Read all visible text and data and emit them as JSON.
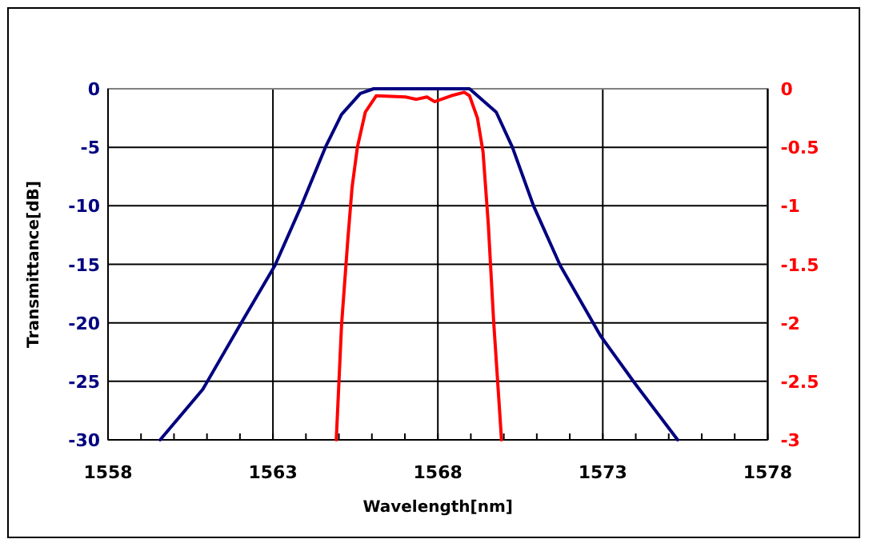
{
  "chart_data": {
    "type": "line",
    "xlabel": "Wavelength[nm]",
    "ylabel": "Transmittance[dB]",
    "xlim": [
      1558,
      1578
    ],
    "xticks": [
      1558,
      {
        "value": 1559,
        "label": null
      },
      {
        "value": 1560,
        "label": null
      },
      {
        "value": 1561,
        "label": null
      },
      {
        "value": 1562,
        "label": null
      },
      1563,
      {
        "value": 1564,
        "label": null
      },
      {
        "value": 1565,
        "label": null
      },
      {
        "value": 1566,
        "label": null
      },
      {
        "value": 1567,
        "label": null
      },
      1568,
      {
        "value": 1569,
        "label": null
      },
      {
        "value": 1570,
        "label": null
      },
      {
        "value": 1571,
        "label": null
      },
      {
        "value": 1572,
        "label": null
      },
      1573,
      {
        "value": 1574,
        "label": null
      },
      {
        "value": 1575,
        "label": null
      },
      {
        "value": 1576,
        "label": null
      },
      {
        "value": 1577,
        "label": null
      },
      1578
    ],
    "ylim": [
      -30,
      0
    ],
    "yticks": [
      -30,
      -25,
      -20,
      -15,
      -10,
      -5,
      0
    ],
    "y2lim": [
      -3,
      0
    ],
    "y2ticks": [
      -3,
      -2.5,
      -2,
      -1.5,
      -1,
      -0.5,
      0
    ],
    "grid": true,
    "marker": "none",
    "line_style": "solid",
    "series": [
      {
        "color": "#000080",
        "x": [
          1559.58,
          1560.87,
          1562.0,
          1563.06,
          1563.86,
          1564.59,
          1565.08,
          1565.65,
          1566.05,
          1568.96,
          1569.77,
          1570.26,
          1570.9,
          1571.71,
          1572.93,
          1573.98,
          1575.27
        ],
        "values": [
          -30,
          -25.7,
          -20.2,
          -15.1,
          -10,
          -5,
          -2.2,
          -0.4,
          0,
          0,
          -2,
          -5,
          -10,
          -15.1,
          -21.1,
          -25.2,
          -30
        ]
      },
      {
        "color": "#ff0000",
        "axis": "y2",
        "x": [
          1564.92,
          1565.08,
          1565.27,
          1565.4,
          1565.56,
          1565.8,
          1566.13,
          1567.02,
          1567.35,
          1567.67,
          1567.9,
          1568.4,
          1568.8,
          1568.96,
          1569.2,
          1569.37,
          1569.53,
          1569.69,
          1569.93
        ],
        "values": [
          -3,
          -2.02,
          -1.29,
          -0.84,
          -0.5,
          -0.2,
          -0.06,
          -0.07,
          -0.09,
          -0.07,
          -0.11,
          -0.06,
          -0.03,
          -0.06,
          -0.25,
          -0.54,
          -1.16,
          -1.98,
          -3
        ]
      }
    ]
  }
}
